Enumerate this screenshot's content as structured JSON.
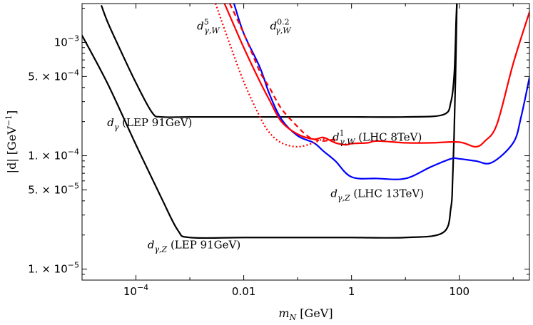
{
  "chart_data": {
    "type": "line",
    "title": "",
    "xlabel": {
      "var": "m",
      "sub": "N",
      "unit": "[GeV]"
    },
    "ylabel": {
      "text": "|d| [GeV",
      "sup": "−1",
      "close": "]"
    },
    "x_scale": "log",
    "y_scale": "log",
    "xlim": [
      1e-05,
      2000
    ],
    "ylim": [
      8e-06,
      0.0022
    ],
    "grid": false,
    "legend": "none",
    "x_ticks": [
      {
        "value": 0.0001,
        "base": "10",
        "exp": "−4"
      },
      {
        "value": 0.01,
        "label": "0.01"
      },
      {
        "value": 1,
        "label": "1"
      },
      {
        "value": 100,
        "label": "100"
      }
    ],
    "y_ticks": [
      {
        "value": 1e-05,
        "mant": "1. × 10",
        "exp": "−5"
      },
      {
        "value": 5e-05,
        "mant": "5. × 10",
        "exp": "−5"
      },
      {
        "value": 0.0001,
        "mant": "1. × 10",
        "exp": "−4"
      },
      {
        "value": 0.0005,
        "mant": "5. × 10",
        "exp": "−4"
      },
      {
        "value": 0.001,
        "mant": "10",
        "exp": "−3"
      }
    ],
    "series": [
      {
        "id": "lep-gamma",
        "color": "#000000",
        "dash": "solid",
        "x": [
          2.3e-05,
          3e-05,
          5e-05,
          0.0001,
          0.0002,
          0.0003,
          0.001,
          0.01,
          0.1,
          1,
          10,
          50,
          70,
          80,
          85,
          87,
          90
        ],
        "y": [
          0.0021,
          0.0015,
          0.00088,
          0.00044,
          0.00024,
          0.00022,
          0.00022,
          0.00022,
          0.00022,
          0.00022,
          0.00022,
          0.00023,
          0.0003,
          0.0005,
          0.001,
          0.0015,
          0.0022
        ]
      },
      {
        "id": "lep-gammaZ",
        "color": "#000000",
        "dash": "solid",
        "x": [
          1e-05,
          3e-05,
          0.0001,
          0.0003,
          0.0006,
          0.001,
          0.01,
          0.1,
          1,
          10,
          50,
          70,
          75,
          80,
          85,
          90
        ],
        "y": [
          0.00115,
          0.00043,
          0.000125,
          4.2e-05,
          2.2e-05,
          1.9e-05,
          1.9e-05,
          1.9e-05,
          1.9e-05,
          1.9e-05,
          2.1e-05,
          3.5e-05,
          6e-05,
          0.00015,
          0.0005,
          0.0022
        ]
      },
      {
        "id": "lhc-gammaZ",
        "color": "#0000ff",
        "dash": "solid",
        "x": [
          0.0066,
          0.01,
          0.02,
          0.03,
          0.05,
          0.1,
          0.2,
          0.3,
          0.5,
          1,
          3,
          10,
          30,
          70,
          100,
          200,
          400,
          1000,
          1400,
          2000
        ],
        "y": [
          0.0022,
          0.0012,
          0.0006,
          0.00035,
          0.00021,
          0.00015,
          0.00013,
          0.00011,
          9e-05,
          6.5e-05,
          6.3e-05,
          6.3e-05,
          8e-05,
          9.4e-05,
          9.4e-05,
          9e-05,
          8.7e-05,
          0.00013,
          0.00022,
          0.00049
        ]
      },
      {
        "id": "lhc-gammaW-1",
        "color": "#ff0000",
        "dash": "solid",
        "x": [
          0.0044,
          0.01,
          0.02,
          0.03,
          0.05,
          0.1,
          0.2,
          0.3,
          0.5,
          0.8,
          1,
          2,
          3,
          10,
          30,
          100,
          200,
          300,
          500,
          1000,
          2000
        ],
        "y": [
          0.0022,
          0.0009,
          0.00045,
          0.00031,
          0.0002,
          0.000155,
          0.00014,
          0.000145,
          0.00013,
          0.000125,
          0.000128,
          0.00013,
          0.000135,
          0.00013,
          0.00013,
          0.000132,
          0.00012,
          0.000135,
          0.00019,
          0.00065,
          0.00185
        ]
      },
      {
        "id": "lhc-gammaW-5",
        "color": "#ff0000",
        "dash": "dotted",
        "x": [
          0.003,
          0.005,
          0.01,
          0.02,
          0.03,
          0.05,
          0.1,
          0.2,
          0.3,
          0.5
        ],
        "y": [
          0.0022,
          0.0011,
          0.00045,
          0.00022,
          0.00016,
          0.00013,
          0.00012,
          0.00013,
          0.00014,
          0.000135
        ]
      },
      {
        "id": "lhc-gammaW-02",
        "color": "#ff0000",
        "dash": "dashed",
        "x": [
          0.0055,
          0.01,
          0.02,
          0.03,
          0.05,
          0.1,
          0.15,
          0.2,
          0.3,
          0.5
        ],
        "y": [
          0.0022,
          0.0012,
          0.00055,
          0.0004,
          0.00026,
          0.00018,
          0.00015,
          0.00014,
          0.000135,
          0.00014
        ]
      }
    ],
    "annotations": [
      {
        "id": "ann-lep-gamma",
        "at": [
          0.00018,
          0.000183
        ],
        "anchor": "middle",
        "parts": [
          {
            "t": "d",
            "m": true
          },
          {
            "t": "γ",
            "m": true,
            "sub": true
          },
          {
            "t": " (LEP 91GeV)"
          }
        ]
      },
      {
        "id": "ann-lep-gammaZ",
        "at": [
          0.0012,
          1.52e-05
        ],
        "anchor": "middle",
        "parts": [
          {
            "t": "d",
            "m": true
          },
          {
            "t": "γ,Z",
            "m": true,
            "sub": true
          },
          {
            "t": " (LEP 91GeV)"
          }
        ]
      },
      {
        "id": "ann-lhc-gammaZ",
        "at": [
          3,
          4.32e-05
        ],
        "anchor": "middle",
        "parts": [
          {
            "t": "d",
            "m": true
          },
          {
            "t": "γ,Z",
            "m": true,
            "sub": true
          },
          {
            "t": " (LHC 13TeV)"
          }
        ]
      },
      {
        "id": "ann-lhc-gammaW-1",
        "at": [
          3,
          0.000136
        ],
        "anchor": "middle",
        "parts": [
          {
            "t": "d",
            "m": true
          },
          {
            "t": "1",
            "sup": true
          },
          {
            "t": "γ,W",
            "m": true,
            "sub": true
          },
          {
            "t": " (LHC 8TeV)"
          }
        ]
      },
      {
        "id": "ann-lhc-gammaW-5",
        "at": [
          0.0022,
          0.0013
        ],
        "anchor": "middle",
        "parts": [
          {
            "t": "d",
            "m": true
          },
          {
            "t": "5",
            "sup": true
          },
          {
            "t": "γ,W",
            "m": true,
            "sub": true
          }
        ]
      },
      {
        "id": "ann-lhc-gammaW-02",
        "at": [
          0.048,
          0.0013
        ],
        "anchor": "middle",
        "parts": [
          {
            "t": "d",
            "m": true
          },
          {
            "t": "0.2",
            "sup": true
          },
          {
            "t": "γ,W",
            "m": true,
            "sub": true
          }
        ]
      }
    ]
  }
}
